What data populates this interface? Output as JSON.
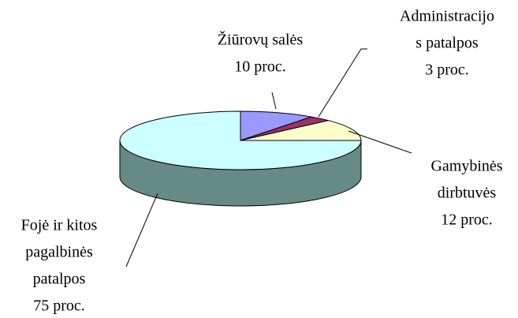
{
  "chart_data": {
    "type": "pie3d",
    "categories": [
      [
        "Žiūrovų salės"
      ],
      [
        "Administracijo",
        "s patalpos"
      ],
      [
        "Gamybinės",
        "dirbtuvės"
      ],
      [
        "Fojė ir kitos",
        "pagalbinės",
        "patalpos"
      ]
    ],
    "values": [
      10,
      3,
      12,
      75
    ],
    "value_labels": [
      "10 proc.",
      "3 proc.",
      "12 proc.",
      "75 proc."
    ],
    "colors": [
      "#9999ff",
      "#993366",
      "#ffffcc",
      "#ccffff"
    ],
    "side_color": "#668a85"
  }
}
